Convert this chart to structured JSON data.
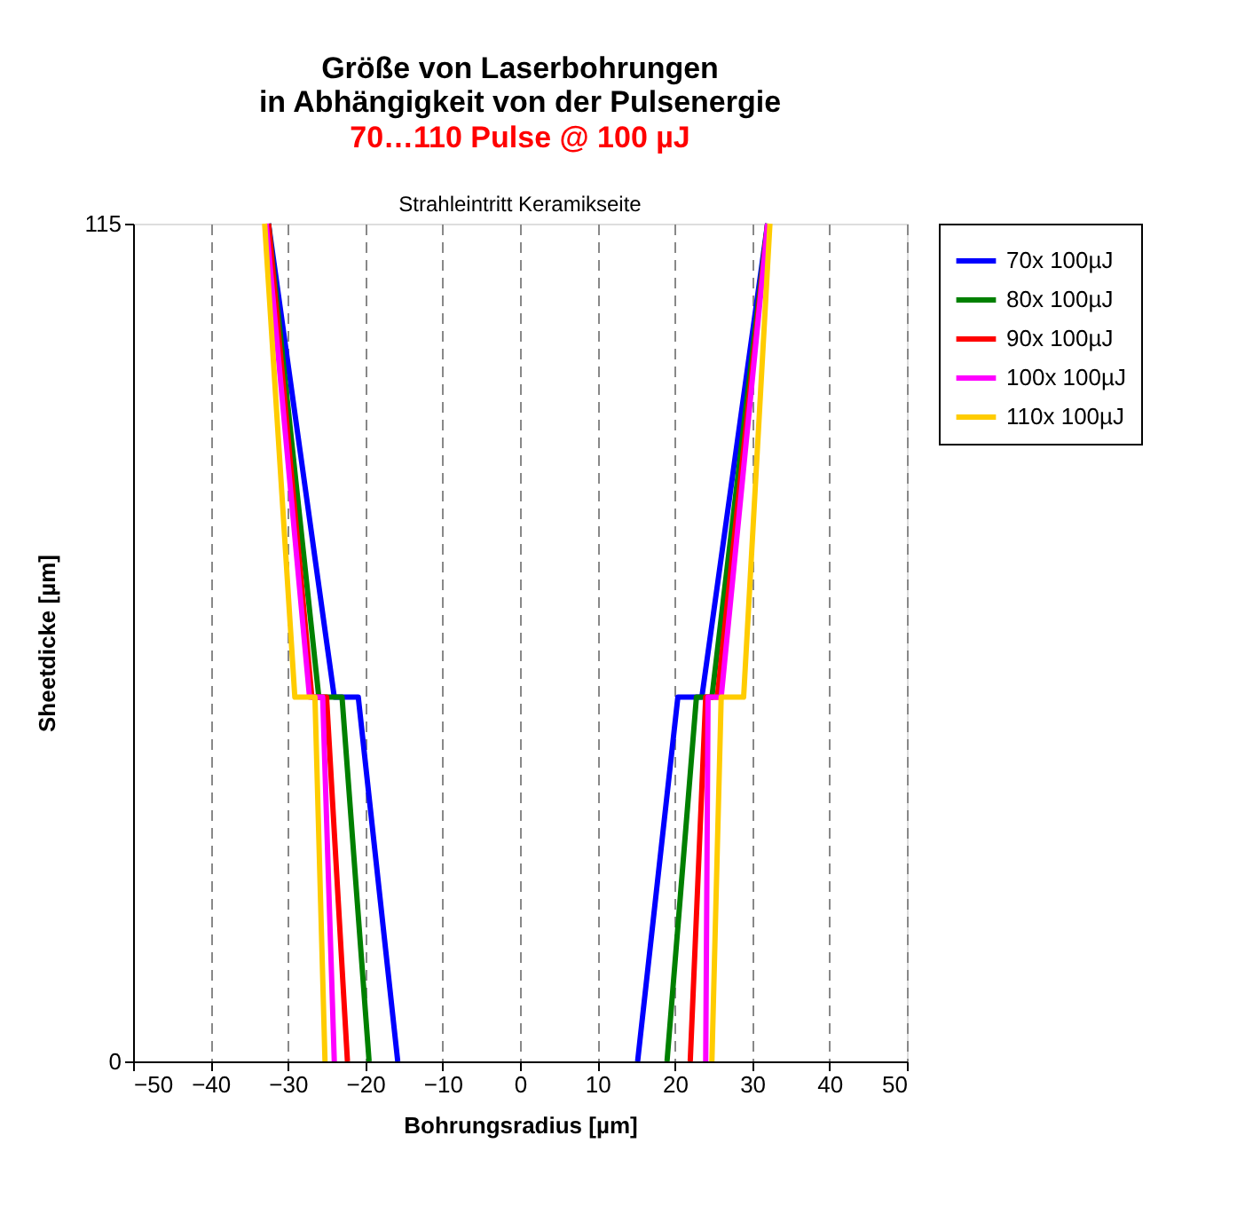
{
  "chart_data": {
    "type": "line",
    "title": "Größe von Laserbohrungen\nin Abhängigkeit von der Pulsenergie",
    "subtitle": "70…110 Pulse @ 100 µJ",
    "annotations": [
      "Strahleintritt Keramikseite"
    ],
    "xlabel": "Bohrungsradius [µm]",
    "ylabel": "Sheetdicke [µm]",
    "xlim": [
      -50,
      50
    ],
    "xticks": [
      -50,
      -40,
      -30,
      -20,
      -10,
      0,
      10,
      20,
      30,
      40,
      50
    ],
    "ylim": [
      0,
      115
    ],
    "yticks": [
      0,
      115
    ],
    "grid": "x",
    "legend": "right",
    "marker": "none",
    "line_style": "solid",
    "series": [
      {
        "name": "70x 100µJ",
        "color": "#0000ff",
        "x": [
          -15.8,
          -20.9,
          -24,
          -32.5,
          null,
          32,
          23.5,
          20.4,
          15.2
        ],
        "values": [
          0,
          50,
          50,
          115,
          null,
          115,
          50,
          50,
          0
        ]
      },
      {
        "name": "80x 100µJ",
        "color": "#008000",
        "x": [
          -19.5,
          -23,
          -26,
          -32.5,
          null,
          32,
          24.8,
          22.8,
          19
        ],
        "values": [
          0,
          50,
          50,
          115,
          null,
          115,
          50,
          50,
          0
        ]
      },
      {
        "name": "90x 100µJ",
        "color": "#ff0000",
        "x": [
          -22.3,
          -25,
          -26.9,
          -32.5,
          null,
          32,
          25.5,
          24,
          22
        ],
        "values": [
          0,
          50,
          50,
          115,
          null,
          115,
          50,
          50,
          0
        ]
      },
      {
        "name": "100x 100µJ",
        "color": "#ff00ff",
        "x": [
          -24,
          -25.5,
          -27.2,
          -32.8,
          null,
          32,
          26,
          24.3,
          24
        ],
        "values": [
          0,
          50,
          50,
          115,
          null,
          115,
          50,
          50,
          0
        ]
      },
      {
        "name": "110x 100µJ",
        "color": "#ffcc00",
        "x": [
          -25.2,
          -26.5,
          -29.1,
          -33,
          null,
          32.3,
          28.9,
          26,
          24.8
        ],
        "values": [
          0,
          50,
          50,
          115,
          null,
          115,
          50,
          50,
          0
        ]
      }
    ]
  }
}
